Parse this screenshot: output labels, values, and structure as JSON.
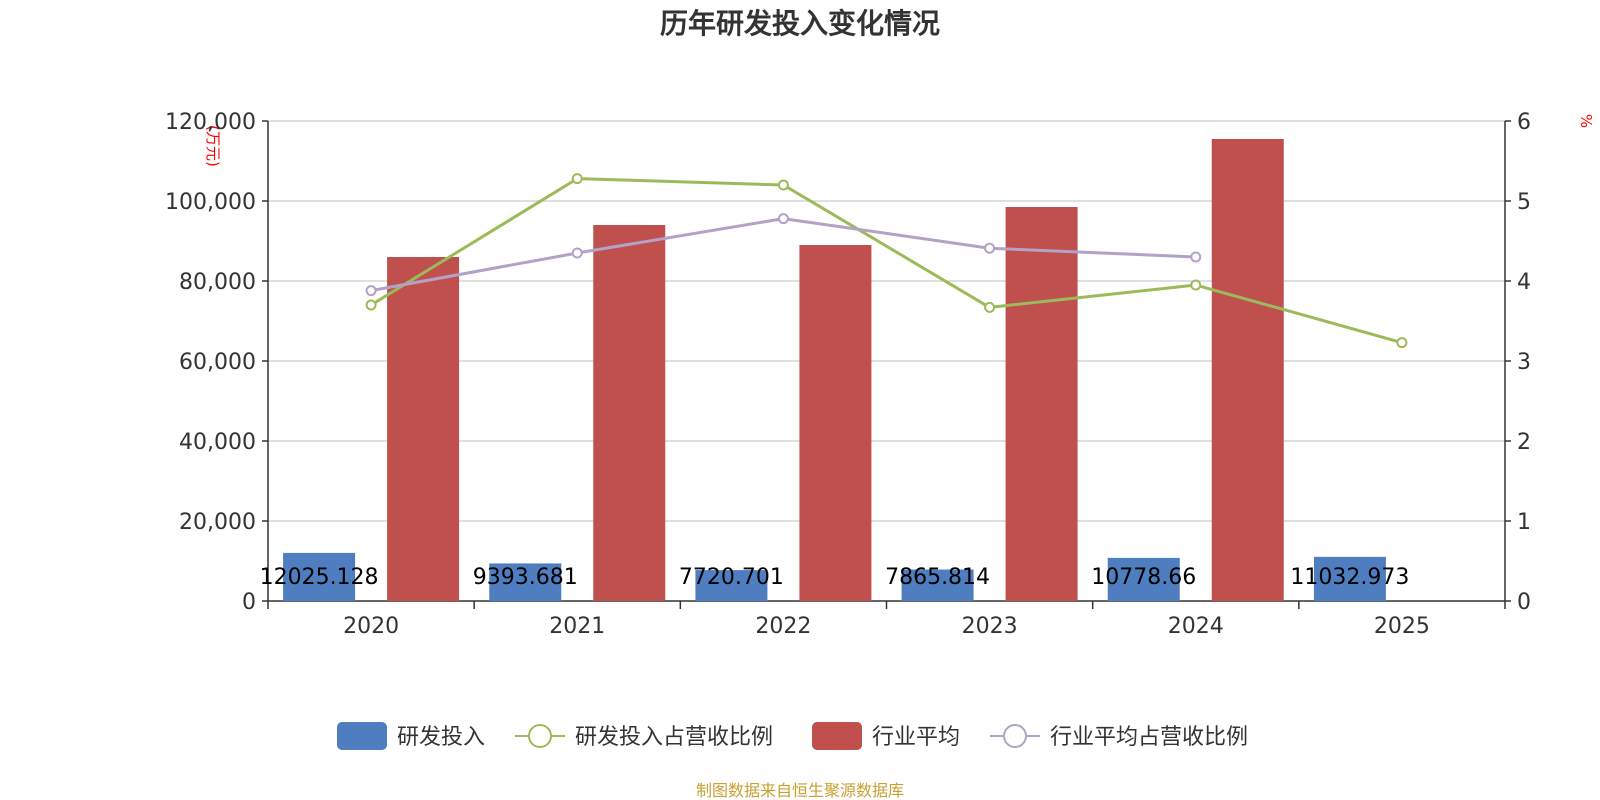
{
  "chart_data": {
    "type": "bar",
    "title": "历年研发投入变化情况",
    "categories": [
      "2020",
      "2021",
      "2022",
      "2023",
      "2024",
      "2025"
    ],
    "y_left": {
      "unit_label": "(万元)",
      "min": 0,
      "max": 120000,
      "ticks": [
        "0",
        "20,000",
        "40,000",
        "60,000",
        "80,000",
        "100,000",
        "120,000"
      ]
    },
    "y_right": {
      "unit_label": "%",
      "min": 0,
      "max": 6,
      "ticks": [
        "0",
        "1",
        "2",
        "3",
        "4",
        "5",
        "6"
      ]
    },
    "grid": true,
    "legend_position": "bottom-center",
    "series": [
      {
        "name": "研发投入",
        "type": "bar",
        "axis": "left",
        "color": "#4f7ec0",
        "values": [
          12025.128,
          9393.681,
          7720.701,
          7865.814,
          10778.66,
          11032.973
        ],
        "labels": [
          "12025.128",
          "9393.681",
          "7720.701",
          "7865.814",
          "10778.66",
          "11032.973"
        ]
      },
      {
        "name": "研发投入占营收比例",
        "type": "line",
        "axis": "right",
        "color": "#9bbb59",
        "values": [
          3.7,
          5.28,
          5.2,
          3.67,
          3.95,
          3.23
        ]
      },
      {
        "name": "行业平均",
        "type": "bar",
        "axis": "left",
        "color": "#c0504d",
        "values": [
          86000,
          94000,
          89000,
          98500,
          115500,
          null
        ]
      },
      {
        "name": "行业平均占营收比例",
        "type": "line",
        "axis": "right",
        "color": "#b3a2c7",
        "values": [
          3.88,
          4.35,
          4.78,
          4.41,
          4.3,
          null
        ]
      }
    ]
  },
  "source": "制图数据来自恒生聚源数据库"
}
